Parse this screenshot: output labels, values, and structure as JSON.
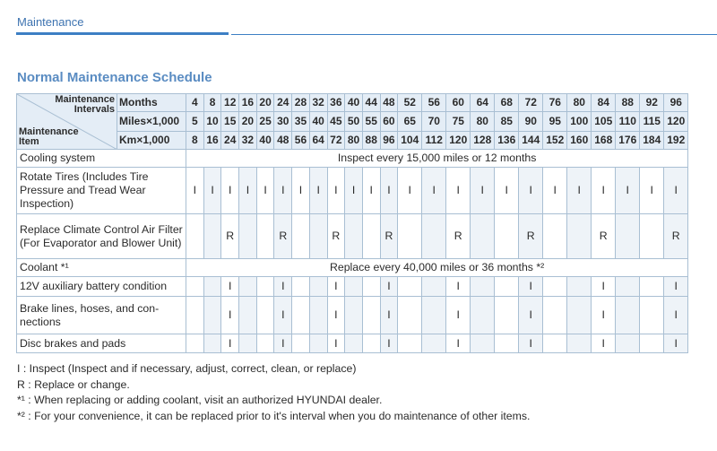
{
  "header": {
    "section": "Maintenance"
  },
  "title": "Normal Maintenance Schedule",
  "table": {
    "corner_top": "Maintenance Intervals",
    "corner_bottom": "Maintenance Item",
    "interval_labels": [
      "Months",
      "Miles×1,000",
      "Km×1,000"
    ],
    "intervals": [
      [
        "4",
        "8",
        "12",
        "16",
        "20",
        "24",
        "28",
        "32",
        "36",
        "40",
        "44",
        "48",
        "52",
        "56",
        "60",
        "64",
        "68",
        "72",
        "76",
        "80",
        "84",
        "88",
        "92",
        "96"
      ],
      [
        "5",
        "10",
        "15",
        "20",
        "25",
        "30",
        "35",
        "40",
        "45",
        "50",
        "55",
        "60",
        "65",
        "70",
        "75",
        "80",
        "85",
        "90",
        "95",
        "100",
        "105",
        "110",
        "115",
        "120"
      ],
      [
        "8",
        "16",
        "24",
        "32",
        "40",
        "48",
        "56",
        "64",
        "72",
        "80",
        "88",
        "96",
        "104",
        "112",
        "120",
        "128",
        "136",
        "144",
        "152",
        "160",
        "168",
        "176",
        "184",
        "192"
      ]
    ],
    "rows": [
      {
        "item": "Cooling system",
        "span": "Inspect every 15,000 miles or 12 months"
      },
      {
        "item": "Rotate Tires (Includes Tire Pressure and Tread Wear Inspection)",
        "cells": [
          "I",
          "I",
          "I",
          "I",
          "I",
          "I",
          "I",
          "I",
          "I",
          "I",
          "I",
          "I",
          "I",
          "I",
          "I",
          "I",
          "I",
          "I",
          "I",
          "I",
          "I",
          "I",
          "I",
          "I"
        ]
      },
      {
        "item": "Replace Climate Control Air Filter (For Evaporator and Blower Unit)",
        "cells": [
          null,
          null,
          "R",
          null,
          null,
          "R",
          null,
          null,
          "R",
          null,
          null,
          "R",
          null,
          null,
          "R",
          null,
          null,
          "R",
          null,
          null,
          "R",
          null,
          null,
          "R"
        ]
      },
      {
        "item": "Coolant *¹",
        "span": "Replace every 40,000 miles or 36 months *²"
      },
      {
        "item": "12V auxiliary battery condition",
        "cells": [
          null,
          null,
          "I",
          null,
          null,
          "I",
          null,
          null,
          "I",
          null,
          null,
          "I",
          null,
          null,
          "I",
          null,
          null,
          "I",
          null,
          null,
          "I",
          null,
          null,
          "I"
        ]
      },
      {
        "item": "Brake lines, hoses, and con-nections",
        "cells": [
          null,
          null,
          "I",
          null,
          null,
          "I",
          null,
          null,
          "I",
          null,
          null,
          "I",
          null,
          null,
          "I",
          null,
          null,
          "I",
          null,
          null,
          "I",
          null,
          null,
          "I"
        ]
      },
      {
        "item": "Disc brakes and pads",
        "cells": [
          null,
          null,
          "I",
          null,
          null,
          "I",
          null,
          null,
          "I",
          null,
          null,
          "I",
          null,
          null,
          "I",
          null,
          null,
          "I",
          null,
          null,
          "I",
          null,
          null,
          "I"
        ]
      }
    ]
  },
  "legend": [
    "I  : Inspect (Inspect and if necessary, adjust, correct, clean, or replace)",
    "R : Replace or change.",
    "*¹ : When replacing or adding coolant, visit an authorized HYUNDAI dealer.",
    "*² : For your convenience, it can be replaced prior to it's interval when you do maintenance of other items."
  ]
}
